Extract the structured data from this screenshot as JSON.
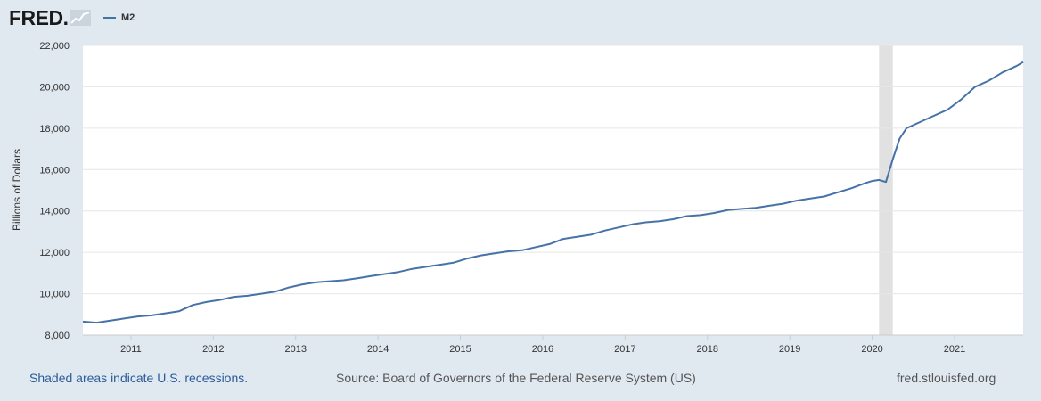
{
  "header": {
    "logo_text": "FRED",
    "logo_dot": ".",
    "legend_label": "M2"
  },
  "colors": {
    "series": "#4572a7",
    "recession": "#e1e1e1",
    "plot_background": "#ffffff",
    "page_background": "#e1e9f0",
    "grid": "#e6e6e6"
  },
  "chart_data": {
    "type": "line",
    "title": "",
    "xlabel": "",
    "ylabel": "Billions of Dollars",
    "ylim": [
      8000,
      22000
    ],
    "xlim": [
      "2010-06",
      "2021-11"
    ],
    "y_ticks": [
      "8,000",
      "10,000",
      "12,000",
      "14,000",
      "16,000",
      "18,000",
      "20,000",
      "22,000"
    ],
    "x_ticks": [
      "2011",
      "2012",
      "2013",
      "2014",
      "2015",
      "2016",
      "2017",
      "2018",
      "2019",
      "2020",
      "2021"
    ],
    "grid": "horizontal",
    "recessions": [
      {
        "start": "2020-02",
        "end": "2020-04"
      }
    ],
    "series": [
      {
        "name": "M2",
        "color": "#4572a7",
        "x": [
          "2010-06",
          "2010-08",
          "2010-10",
          "2010-12",
          "2011-02",
          "2011-04",
          "2011-06",
          "2011-08",
          "2011-10",
          "2011-12",
          "2012-02",
          "2012-04",
          "2012-06",
          "2012-08",
          "2012-10",
          "2012-12",
          "2013-02",
          "2013-04",
          "2013-06",
          "2013-08",
          "2013-10",
          "2013-12",
          "2014-02",
          "2014-04",
          "2014-06",
          "2014-08",
          "2014-10",
          "2014-12",
          "2015-02",
          "2015-04",
          "2015-06",
          "2015-08",
          "2015-10",
          "2015-12",
          "2016-02",
          "2016-04",
          "2016-06",
          "2016-08",
          "2016-10",
          "2016-12",
          "2017-02",
          "2017-04",
          "2017-06",
          "2017-08",
          "2017-10",
          "2017-12",
          "2018-02",
          "2018-04",
          "2018-06",
          "2018-08",
          "2018-10",
          "2018-12",
          "2019-02",
          "2019-04",
          "2019-06",
          "2019-08",
          "2019-10",
          "2019-12",
          "2020-01",
          "2020-02",
          "2020-03",
          "2020-04",
          "2020-05",
          "2020-06",
          "2020-08",
          "2020-10",
          "2020-12",
          "2021-02",
          "2021-04",
          "2021-06",
          "2021-08",
          "2021-10",
          "2021-11"
        ],
        "values": [
          8650,
          8600,
          8700,
          8800,
          8900,
          8950,
          9050,
          9150,
          9450,
          9600,
          9700,
          9850,
          9900,
          10000,
          10100,
          10300,
          10450,
          10550,
          10600,
          10650,
          10750,
          10850,
          10950,
          11050,
          11200,
          11300,
          11400,
          11500,
          11700,
          11850,
          11950,
          12050,
          12100,
          12250,
          12400,
          12650,
          12750,
          12850,
          13050,
          13200,
          13350,
          13450,
          13500,
          13600,
          13750,
          13800,
          13900,
          14050,
          14100,
          14150,
          14250,
          14350,
          14500,
          14600,
          14700,
          14900,
          15100,
          15350,
          15450,
          15500,
          15400,
          16500,
          17500,
          18000,
          18300,
          18600,
          18900,
          19400,
          20000,
          20300,
          20700,
          21000,
          21200
        ]
      }
    ]
  },
  "footer": {
    "recession_note": "Shaded areas indicate U.S. recessions.",
    "source": "Source: Board of Governors of the Federal Reserve System (US)",
    "site": "fred.stlouisfed.org"
  }
}
